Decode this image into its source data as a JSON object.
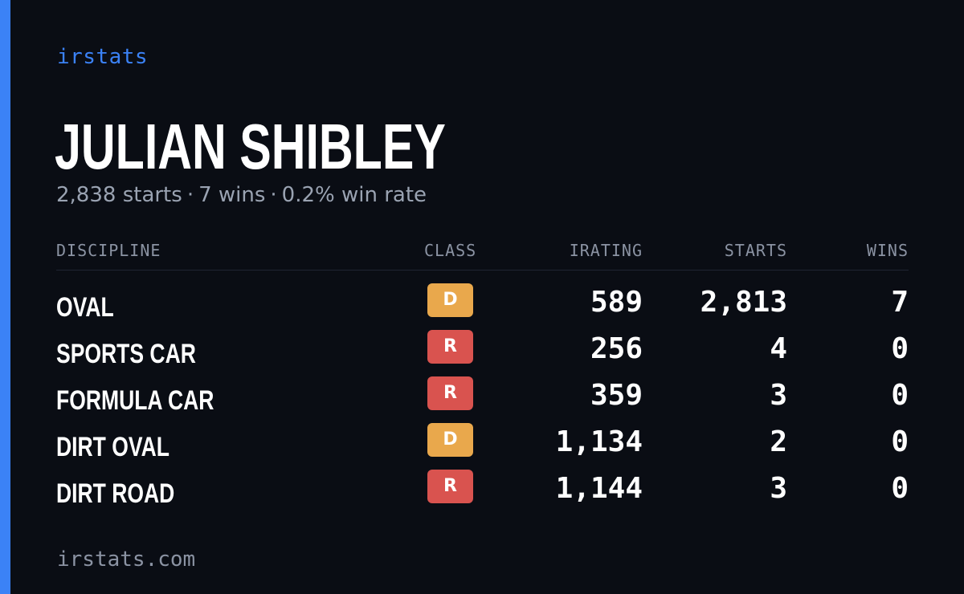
{
  "brand": "irstats",
  "driver": {
    "name": "JULIAN SHIBLEY",
    "starts": "2,838 starts",
    "wins": "7 wins",
    "win_rate": "0.2% win rate",
    "separator": "·"
  },
  "table": {
    "headers": {
      "discipline": "DISCIPLINE",
      "class": "CLASS",
      "irating": "IRATING",
      "starts": "STARTS",
      "wins": "WINS"
    },
    "rows": [
      {
        "discipline": "OVAL",
        "class": "D",
        "irating": "589",
        "starts": "2,813",
        "wins": "7"
      },
      {
        "discipline": "SPORTS CAR",
        "class": "R",
        "irating": "256",
        "starts": "4",
        "wins": "0"
      },
      {
        "discipline": "FORMULA CAR",
        "class": "R",
        "irating": "359",
        "starts": "3",
        "wins": "0"
      },
      {
        "discipline": "DIRT OVAL",
        "class": "D",
        "irating": "1,134",
        "starts": "2",
        "wins": "0"
      },
      {
        "discipline": "DIRT ROAD",
        "class": "R",
        "irating": "1,144",
        "starts": "3",
        "wins": "0"
      }
    ]
  },
  "class_colors": {
    "D": "#e9a84c",
    "R": "#d9534f"
  },
  "colors": {
    "accent": "#3b82f6",
    "background": "#0a0d14"
  },
  "footer": "irstats.com"
}
